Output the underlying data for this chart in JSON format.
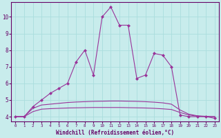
{
  "xlabel": "Windchill (Refroidissement éolien,°C)",
  "ylabel": "",
  "background_color": "#c8ecec",
  "line_color": "#993399",
  "grid_color": "#aadddd",
  "xlim": [
    -0.5,
    23.5
  ],
  "ylim": [
    3.7,
    10.9
  ],
  "xticks": [
    0,
    1,
    2,
    3,
    4,
    5,
    6,
    7,
    8,
    9,
    10,
    11,
    12,
    13,
    14,
    15,
    16,
    17,
    18,
    19,
    20,
    21,
    22,
    23
  ],
  "yticks": [
    4,
    5,
    6,
    7,
    8,
    9,
    10
  ],
  "x_series1": [
    0,
    1,
    2,
    3,
    4,
    5,
    6,
    7,
    8,
    9,
    10,
    11,
    12,
    13,
    14,
    15,
    16,
    17,
    18,
    19,
    20,
    21,
    22,
    23
  ],
  "y_series1": [
    4.0,
    4.0,
    4.6,
    5.0,
    5.4,
    5.7,
    6.0,
    7.3,
    8.0,
    6.5,
    10.0,
    10.6,
    9.5,
    9.5,
    6.3,
    6.5,
    7.8,
    7.7,
    7.0,
    4.1,
    4.0,
    4.0,
    4.0,
    3.9
  ],
  "x_series2": [
    0,
    1,
    2,
    3,
    4,
    5,
    6,
    7,
    8,
    9,
    10,
    11,
    12,
    13,
    14,
    15,
    16,
    17,
    18,
    19,
    20,
    21,
    22,
    23
  ],
  "y_series2": [
    4.0,
    4.0,
    4.5,
    4.7,
    4.75,
    4.8,
    4.85,
    4.88,
    4.9,
    4.92,
    4.93,
    4.94,
    4.94,
    4.93,
    4.92,
    4.9,
    4.87,
    4.83,
    4.75,
    4.4,
    4.15,
    4.05,
    4.02,
    4.0
  ],
  "x_series3": [
    0,
    1,
    2,
    3,
    4,
    5,
    6,
    7,
    8,
    9,
    10,
    11,
    12,
    13,
    14,
    15,
    16,
    17,
    18,
    19,
    20,
    21,
    22,
    23
  ],
  "y_series3": [
    4.0,
    4.0,
    4.3,
    4.45,
    4.48,
    4.5,
    4.52,
    4.53,
    4.54,
    4.55,
    4.55,
    4.55,
    4.55,
    4.54,
    4.53,
    4.52,
    4.5,
    4.47,
    4.43,
    4.25,
    4.1,
    4.03,
    4.01,
    4.0
  ],
  "font_color": "#660066",
  "marker": "D",
  "markersize": 2.0,
  "linewidth": 0.8,
  "tick_fontsize_x": 4.2,
  "tick_fontsize_y": 5.5,
  "xlabel_fontsize": 5.5
}
